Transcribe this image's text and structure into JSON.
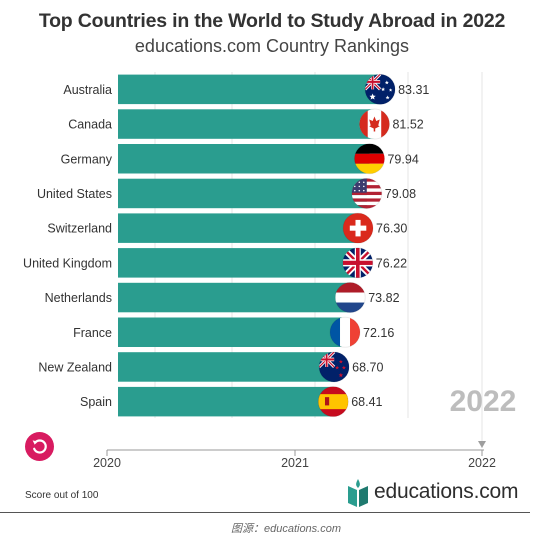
{
  "title": "Top Countries in the World to Study Abroad in 2022",
  "subtitle": "educations.com Country Rankings",
  "year_display": "2022",
  "footnote": "Score out of 100",
  "logo_text": "educations.com",
  "source_text": "图源：educations.com",
  "colors": {
    "bar": "#2a9d8f",
    "title": "#333333",
    "replay_button": "#d81b60",
    "year": "#bdbdbd",
    "axis": "#999999"
  },
  "chart_data": {
    "type": "bar",
    "orientation": "horizontal",
    "title": "Top Countries in the World to Study Abroad in 2022",
    "subtitle": "educations.com Country Rankings",
    "categories": [
      "Australia",
      "Canada",
      "Germany",
      "United States",
      "Switzerland",
      "United Kingdom",
      "Netherlands",
      "France",
      "New Zealand",
      "Spain"
    ],
    "values": [
      83.31,
      81.52,
      79.94,
      79.08,
      76.3,
      76.22,
      73.82,
      72.16,
      68.7,
      68.41
    ],
    "value_labels": [
      "83.31",
      "81.52",
      "79.94",
      "79.08",
      "76.30",
      "76.22",
      "73.82",
      "72.16",
      "68.70",
      "68.41"
    ],
    "flags": [
      "australia-flag",
      "canada-flag",
      "germany-flag",
      "united-states-flag",
      "switzerland-flag",
      "united-kingdom-flag",
      "netherlands-flag",
      "france-flag",
      "new-zealand-flag",
      "spain-flag"
    ],
    "value_axis_max": 100,
    "timeline": {
      "ticks": [
        "2020",
        "2021",
        "2022"
      ],
      "current": "2022"
    },
    "grid": true,
    "legend": "none"
  }
}
